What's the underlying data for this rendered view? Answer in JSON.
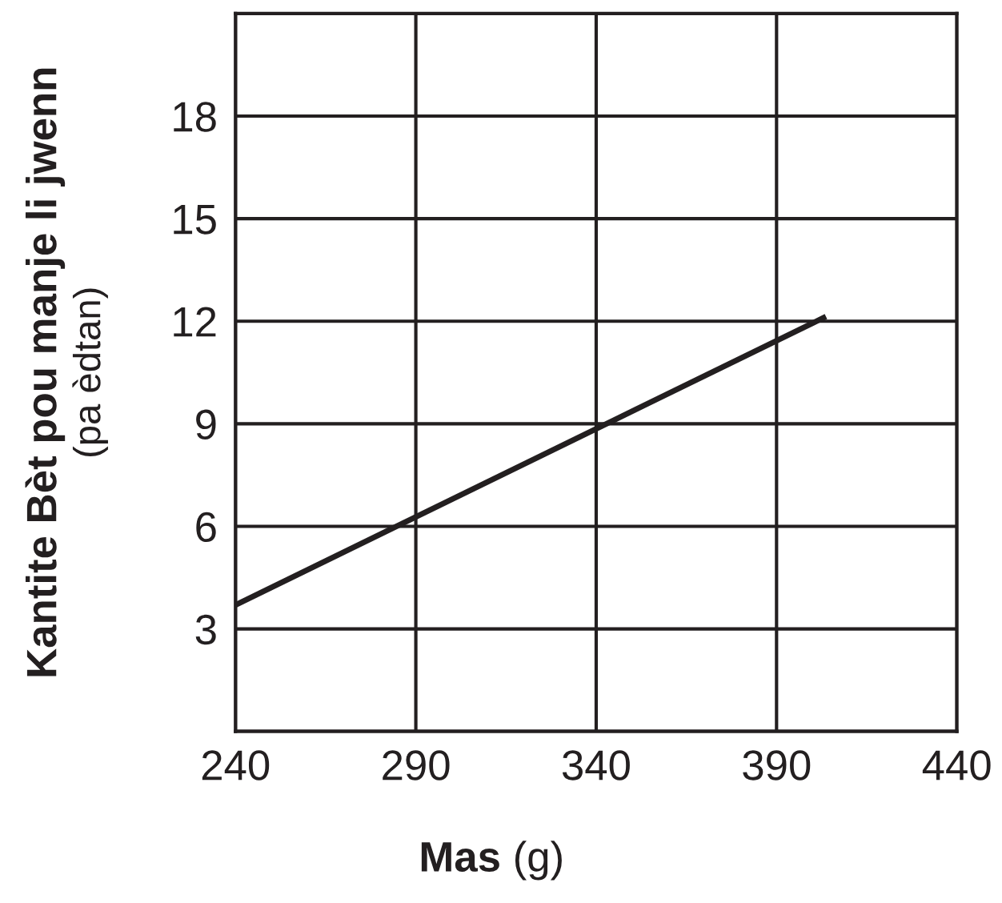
{
  "chart_data": {
    "type": "line",
    "xlabel": "Mas (g)",
    "ylabel": "Kantite Bèt pou manje li jwenn\n(pa èdtan)",
    "x": [
      240,
      403
    ],
    "series": [
      {
        "color": "#231f20",
        "values": [
          3.7,
          12.1
        ]
      }
    ],
    "xlim": [
      240,
      440
    ],
    "xticks": [
      240,
      290,
      340,
      390,
      440
    ],
    "ylim": [
      0,
      21
    ],
    "yticks": [
      {
        "value": 0,
        "label": null
      },
      3,
      6,
      9,
      12,
      15,
      18,
      {
        "value": 21,
        "label": null
      }
    ],
    "grid": true,
    "marker": "none",
    "line_style": "solid"
  }
}
